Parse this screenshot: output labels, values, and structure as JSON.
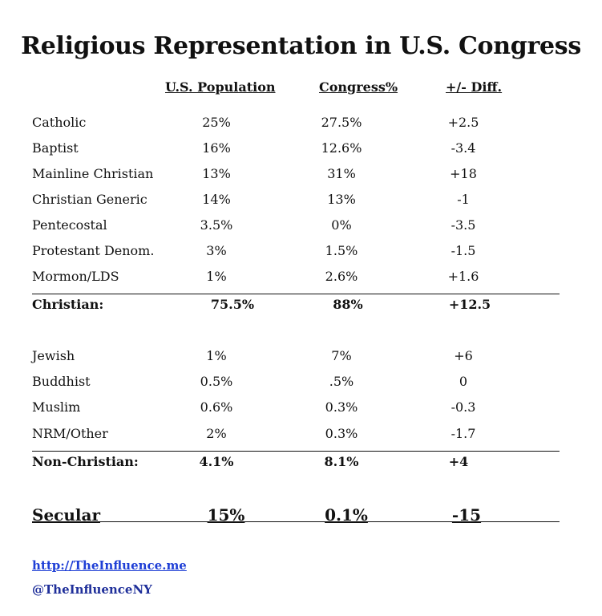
{
  "title": "Religious Representation in U.S. Congress",
  "headers": {
    "population": "U.S. Population",
    "congress": "Congress%",
    "diff": "+/- Diff."
  },
  "christian_rows": [
    {
      "label": "Catholic",
      "pop": "25%",
      "cong": "27.5%",
      "diff": "+2.5"
    },
    {
      "label": "Baptist",
      "pop": "16%",
      "cong": "12.6%",
      "diff": "-3.4"
    },
    {
      "label": "Mainline Christian",
      "pop": "13%",
      "cong": "31%",
      "diff": "+18"
    },
    {
      "label": "Christian Generic",
      "pop": "14%",
      "cong": "13%",
      "diff": "-1"
    },
    {
      "label": "Pentecostal",
      "pop": "3.5%",
      "cong": "0%",
      "diff": "-3.5"
    },
    {
      "label": "Protestant Denom.",
      "pop": "3%",
      "cong": "1.5%",
      "diff": "-1.5"
    },
    {
      "label": "Mormon/LDS",
      "pop": "1%",
      "cong": "2.6%",
      "diff": "+1.6"
    }
  ],
  "christian_total": {
    "label": "Christian:",
    "pop": "75.5%",
    "cong": "88%",
    "diff": "+12.5"
  },
  "nonchristian_rows": [
    {
      "label": "Jewish",
      "pop": "1%",
      "cong": "7%",
      "diff": "+6"
    },
    {
      "label": "Buddhist",
      "pop": "0.5%",
      "cong": ".5%",
      "diff": "0"
    },
    {
      "label": "Muslim",
      "pop": "0.6%",
      "cong": "0.3%",
      "diff": "-0.3"
    },
    {
      "label": "NRM/Other",
      "pop": "2%",
      "cong": "0.3%",
      "diff": "-1.7"
    }
  ],
  "nonchristian_total": {
    "label": "Non-Christian:",
    "pop": "4.1%",
    "cong": "8.1%",
    "diff": "+4"
  },
  "secular": {
    "label": "Secular",
    "pop": "15%",
    "cong": "0.1%",
    "diff": "-15"
  },
  "footer": {
    "url": "http://TheInfluence.me",
    "handle": "@TheInfluenceNY"
  }
}
